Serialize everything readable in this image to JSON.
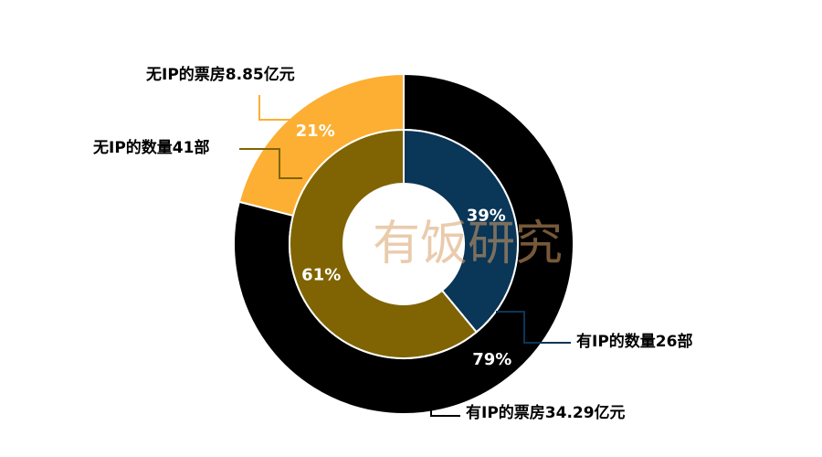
{
  "chart_data": {
    "type": "pie",
    "style": "nested-donut",
    "watermark": "有饭研究",
    "rings": [
      {
        "ring": "outer",
        "series": "票房",
        "slices": [
          {
            "name": "有IP的票房34.29亿元",
            "value": 79,
            "label": "79%",
            "color": "#000000",
            "label_color": "#ffffff"
          },
          {
            "name": "无IP的票房8.85亿元",
            "value": 21,
            "label": "21%",
            "color": "#FCAF33",
            "label_color": "#ffffff"
          }
        ]
      },
      {
        "ring": "inner",
        "series": "数量",
        "slices": [
          {
            "name": "有IP的数量26部",
            "value": 39,
            "label": "39%",
            "color": "#0A3657",
            "label_color": "#ffffff"
          },
          {
            "name": "无IP的数量41部",
            "value": 61,
            "label": "61%",
            "color": "#806403",
            "label_color": "#ffffff"
          }
        ]
      }
    ],
    "callouts": [
      {
        "text": "无IP的票房8.85亿元",
        "color": "#FCAF33"
      },
      {
        "text": "无IP的数量41部",
        "color": "#806403"
      },
      {
        "text": "有IP的数量26部",
        "color": "#0A3657"
      },
      {
        "text": "有IP的票房34.29亿元",
        "color": "#000000"
      }
    ]
  }
}
